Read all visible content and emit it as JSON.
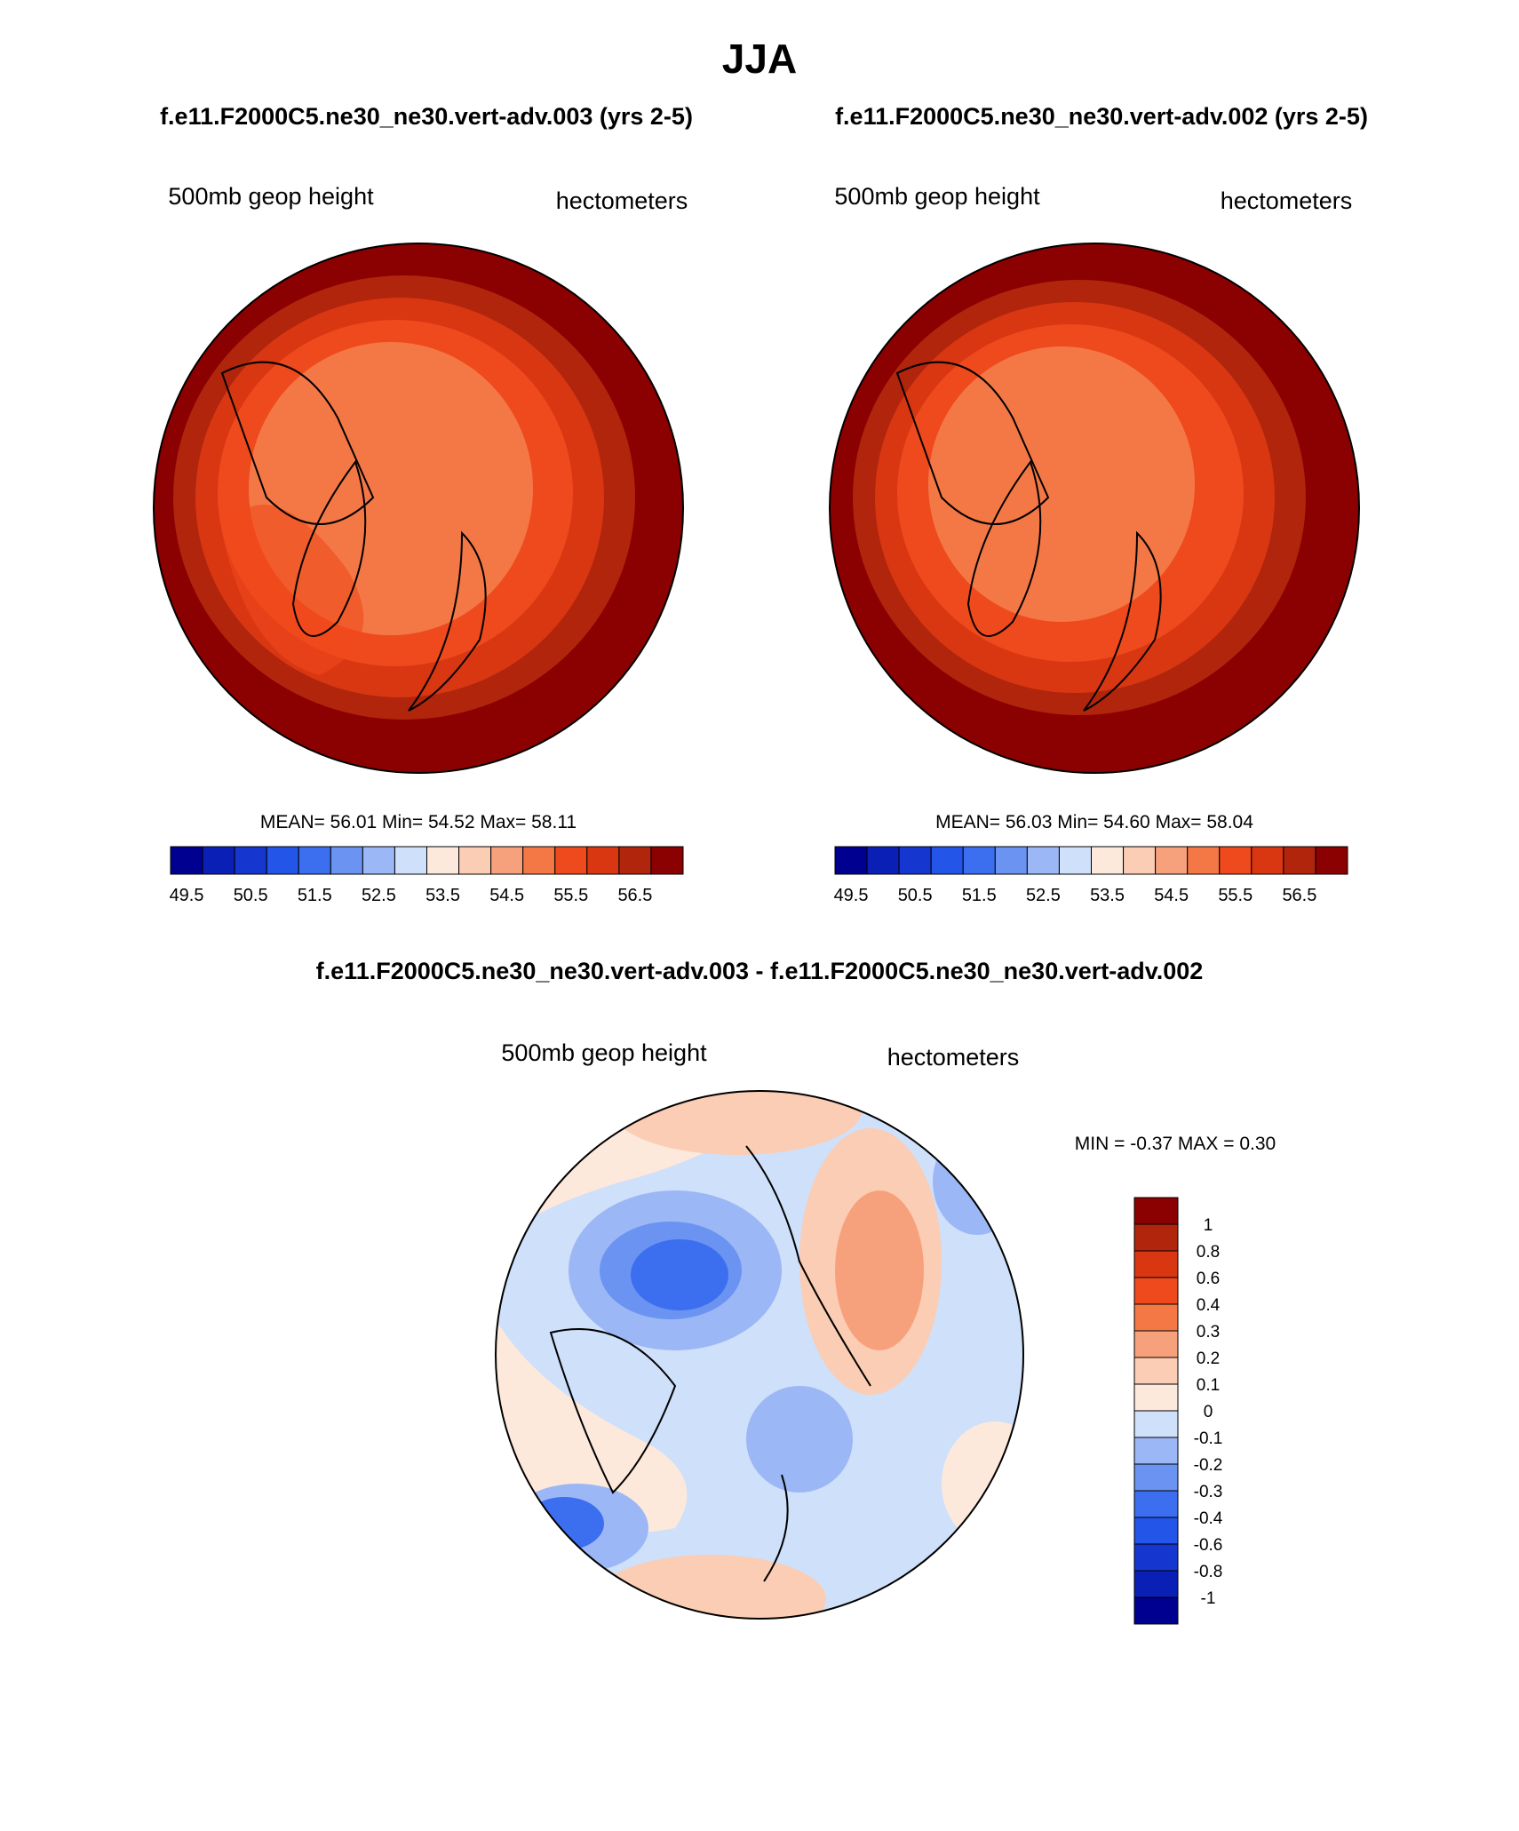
{
  "title": "JJA",
  "panels": [
    {
      "subtitle": "f.e11.F2000C5.ne30_ne30.vert-adv.003 (yrs 2-5)",
      "left_label": "500mb geop height",
      "right_label": "hectometers",
      "stats": "MEAN=  56.01  Min=  54.52  Max=  58.11"
    },
    {
      "subtitle": "f.e11.F2000C5.ne30_ne30.vert-adv.002 (yrs 2-5)",
      "left_label": "500mb geop height",
      "right_label": "hectometers",
      "stats": "MEAN=  56.03  Min=  54.60  Max=  58.04"
    }
  ],
  "colorbar": {
    "colors": [
      "#000090",
      "#0a1fb5",
      "#1537d0",
      "#2255e8",
      "#3c6ff0",
      "#6b93f2",
      "#9cb7f5",
      "#cfe0fa",
      "#fde9dc",
      "#fbcdb4",
      "#f7a17c",
      "#f47846",
      "#ef4a1d",
      "#d93612",
      "#b0250c",
      "#8b0000"
    ],
    "labels": [
      49.5,
      50.5,
      51.5,
      52.5,
      53.5,
      54.5,
      55.5,
      56.5
    ]
  },
  "difference": {
    "title": "f.e11.F2000C5.ne30_ne30.vert-adv.003 - f.e11.F2000C5.ne30_ne30.vert-adv.002",
    "left_label": "500mb geop height",
    "right_label": "hectometers",
    "stats": "MIN =  -0.37 MAX =   0.30",
    "colorbar_labels": [
      1,
      0.8,
      0.6,
      0.4,
      0.3,
      0.2,
      0.1,
      0,
      -0.1,
      -0.2,
      -0.3,
      -0.4,
      -0.6,
      -0.8,
      -1
    ]
  }
}
